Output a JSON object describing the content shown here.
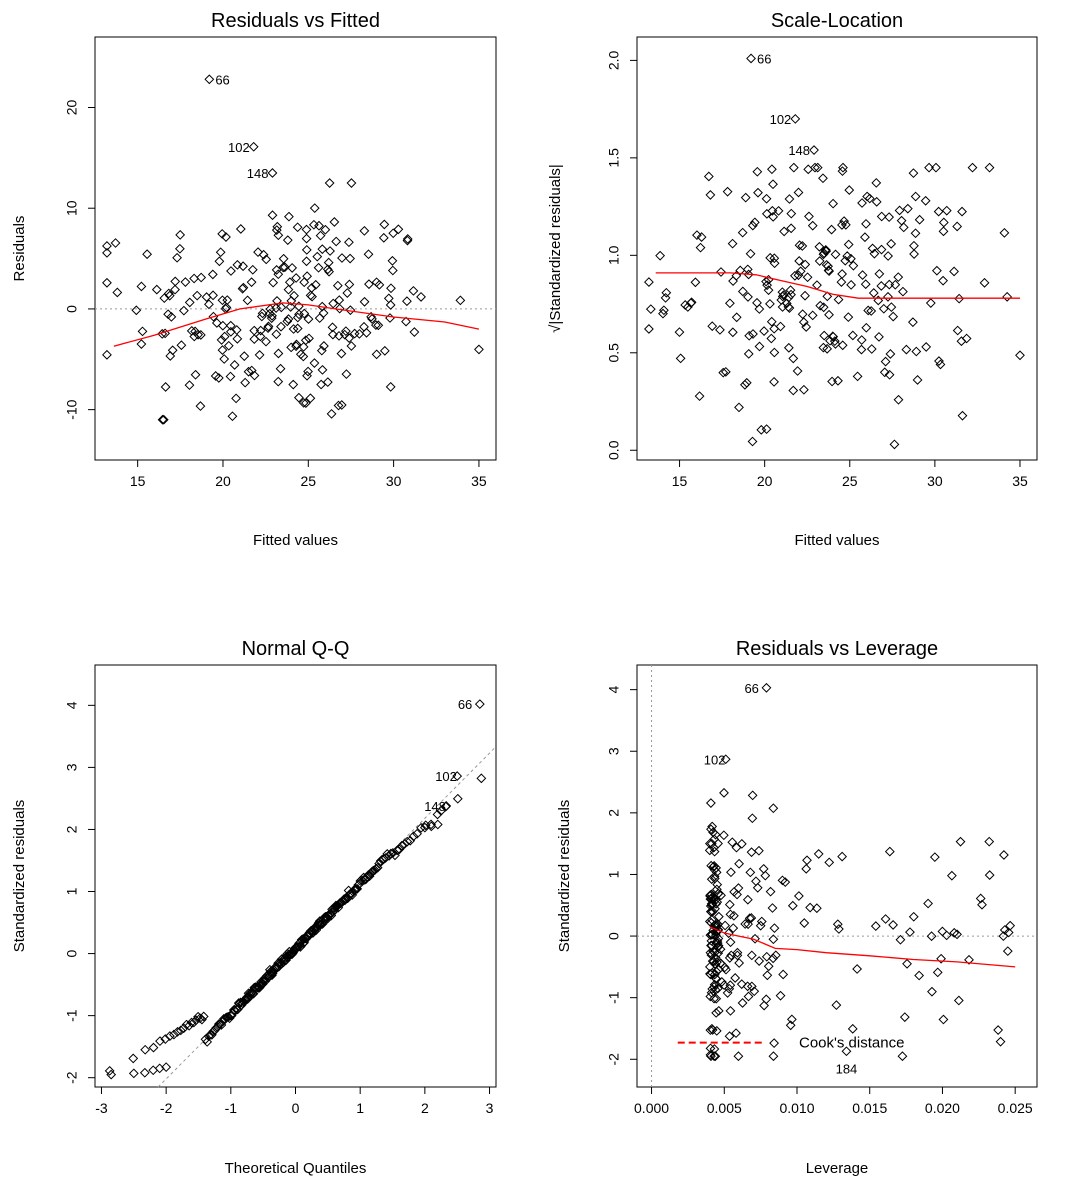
{
  "colors": {
    "smooth": "#ff0000",
    "refline": "#999999",
    "point": "#000000",
    "background": "#ffffff"
  },
  "chart_data": [
    {
      "type": "scatter",
      "title": "Residuals vs Fitted",
      "xlabel": "Fitted values",
      "ylabel": "Residuals",
      "xlim": [
        12.5,
        36
      ],
      "ylim": [
        -15,
        27
      ],
      "xticks": [
        15,
        20,
        25,
        30,
        35
      ],
      "yticks": [
        -10,
        0,
        10,
        20
      ],
      "refline": {
        "orientation": "horizontal",
        "value": 0
      },
      "labeled_points": [
        {
          "label": "66",
          "x": 19.2,
          "y": 22.8
        },
        {
          "label": "102",
          "x": 21.8,
          "y": 16.1
        },
        {
          "label": "148",
          "x": 22.9,
          "y": 13.5
        }
      ],
      "smooth": [
        [
          13.6,
          -3.7
        ],
        [
          16,
          -2.6
        ],
        [
          19,
          -1.0
        ],
        [
          21,
          0.0
        ],
        [
          23.5,
          0.6
        ],
        [
          25,
          0.4
        ],
        [
          27,
          -0.1
        ],
        [
          30,
          -0.8
        ],
        [
          33,
          -1.3
        ],
        [
          35,
          -2.0
        ]
      ],
      "point_count": 250,
      "x_distribution": {
        "min": 13.2,
        "max": 35,
        "center": 23.5,
        "spread": 4.5
      },
      "y_distribution": {
        "min": -11,
        "max": 12.5,
        "center": 0,
        "spread": 5.5
      }
    },
    {
      "type": "scatter",
      "title": "Scale-Location",
      "xlabel": "Fitted values",
      "ylabel": "√|Standardized residuals|",
      "xlim": [
        12.5,
        36
      ],
      "ylim": [
        -0.05,
        2.12
      ],
      "xticks": [
        15,
        20,
        25,
        30,
        35
      ],
      "yticks": [
        0.0,
        0.5,
        1.0,
        1.5,
        2.0
      ],
      "ytick_labels": [
        "0.0",
        "0.5",
        "1.0",
        "1.5",
        "2.0"
      ],
      "labeled_points": [
        {
          "label": "66",
          "x": 19.2,
          "y": 2.01
        },
        {
          "label": "102",
          "x": 21.8,
          "y": 1.7
        },
        {
          "label": "148",
          "x": 22.9,
          "y": 1.54
        }
      ],
      "smooth": [
        [
          13.6,
          0.91
        ],
        [
          16,
          0.91
        ],
        [
          18,
          0.91
        ],
        [
          19.5,
          0.9
        ],
        [
          21,
          0.87
        ],
        [
          22.5,
          0.84
        ],
        [
          24,
          0.8
        ],
        [
          25.5,
          0.78
        ],
        [
          27,
          0.78
        ],
        [
          30,
          0.78
        ],
        [
          33,
          0.78
        ],
        [
          35,
          0.78
        ]
      ],
      "point_count": 250,
      "x_distribution": {
        "min": 13.2,
        "max": 35,
        "center": 23.5,
        "spread": 4.5
      },
      "y_distribution": {
        "min": 0.03,
        "max": 1.45,
        "center": 0.85,
        "spread": 0.32
      }
    },
    {
      "type": "scatter",
      "title": "Normal Q-Q",
      "xlabel": "Theoretical Quantiles",
      "ylabel": "Standardized residuals",
      "xlim": [
        -3.1,
        3.1
      ],
      "ylim": [
        -2.15,
        4.65
      ],
      "xticks": [
        -3,
        -2,
        -1,
        0,
        1,
        2,
        3
      ],
      "yticks": [
        -2,
        -1,
        0,
        1,
        2,
        3,
        4
      ],
      "refline": {
        "orientation": "diagonal",
        "intercept": 0.08,
        "slope": 1.05
      },
      "labeled_points": [
        {
          "label": "66",
          "x": 2.85,
          "y": 4.02
        },
        {
          "label": "102",
          "x": 2.5,
          "y": 2.86
        },
        {
          "label": "148",
          "x": 2.33,
          "y": 2.38
        }
      ],
      "tail_points": [
        [
          -2.85,
          -1.95
        ],
        [
          -2.5,
          -1.93
        ],
        [
          -2.33,
          -1.92
        ],
        [
          -2.2,
          -1.88
        ],
        [
          -2.1,
          -1.85
        ],
        [
          -2.0,
          -1.83
        ],
        [
          2.0,
          2.03
        ],
        [
          2.1,
          2.05
        ],
        [
          2.2,
          2.08
        ],
        [
          2.25,
          2.3
        ]
      ],
      "point_count": 250
    },
    {
      "type": "scatter",
      "title": "Residuals vs Leverage",
      "xlabel": "Leverage",
      "ylabel": "Standardized residuals",
      "xlim": [
        -0.001,
        0.0265
      ],
      "ylim": [
        -2.45,
        4.4
      ],
      "xticks": [
        0.0,
        0.005,
        0.01,
        0.015,
        0.02,
        0.025
      ],
      "xtick_labels": [
        "0.000",
        "0.005",
        "0.010",
        "0.015",
        "0.020",
        "0.025"
      ],
      "yticks": [
        -2,
        -1,
        0,
        1,
        2,
        3,
        4
      ],
      "refline": [
        {
          "orientation": "horizontal",
          "value": 0
        },
        {
          "orientation": "vertical",
          "value": 0
        }
      ],
      "labeled_points": [
        {
          "label": "66",
          "x": 0.0079,
          "y": 4.03
        },
        {
          "label": "102",
          "x": 0.0051,
          "y": 2.87
        },
        {
          "label": "184",
          "x": 0.0134,
          "y": -1.87
        }
      ],
      "smooth": [
        [
          0.004,
          0.15
        ],
        [
          0.005,
          0.05
        ],
        [
          0.006,
          0.0
        ],
        [
          0.007,
          -0.05
        ],
        [
          0.0085,
          -0.2
        ],
        [
          0.01,
          -0.22
        ],
        [
          0.012,
          -0.27
        ],
        [
          0.015,
          -0.32
        ],
        [
          0.018,
          -0.38
        ],
        [
          0.021,
          -0.42
        ],
        [
          0.025,
          -0.5
        ]
      ],
      "cooks_legend": "Cook's distance",
      "cooks_line": [
        [
          0.0018,
          -1.73
        ],
        [
          0.0078,
          -1.73
        ]
      ],
      "point_count": 250
    }
  ]
}
